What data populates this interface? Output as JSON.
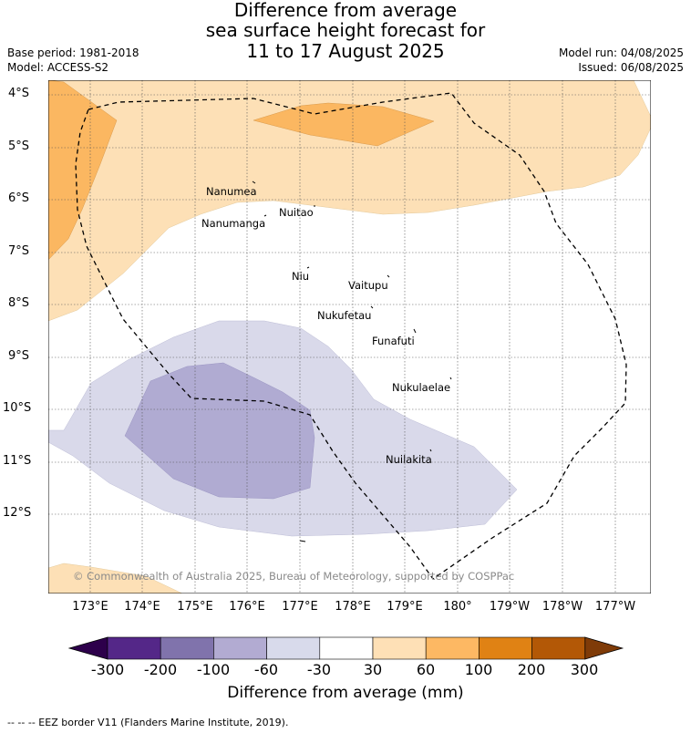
{
  "header": {
    "title_line1": "Difference from average",
    "title_line2": "sea surface height forecast for",
    "title_line3": "11 to 17 August 2025",
    "base_period": "Base period: 1981-2018",
    "model": "Model: ACCESS-S2",
    "model_run": "Model run: 04/08/2025",
    "issued": "Issued: 06/08/2025"
  },
  "map": {
    "lat_labels": [
      "4°S",
      "5°S",
      "6°S",
      "7°S",
      "8°S",
      "9°S",
      "10°S",
      "11°S",
      "12°S"
    ],
    "lon_labels": [
      "173°E",
      "174°E",
      "175°E",
      "176°E",
      "177°E",
      "178°E",
      "179°E",
      "180°",
      "179°W",
      "178°W",
      "177°W"
    ],
    "islands": [
      {
        "name": "Nanumea"
      },
      {
        "name": "Nuitao"
      },
      {
        "name": "Nanumanga"
      },
      {
        "name": "Niu"
      },
      {
        "name": "Vaitupu"
      },
      {
        "name": "Nukufetau"
      },
      {
        "name": "Funafuti"
      },
      {
        "name": "Nukulaelae"
      },
      {
        "name": "Nuilakita"
      }
    ],
    "copyright": "© Commonwealth of Australia 2025, Bureau of Meteorology, supported by COSPPac",
    "colors": {
      "pos_30_60": "#fde0b6",
      "pos_60_100": "#fbb761",
      "neg_30_60": "#d9d9ea",
      "neg_60_100": "#b0abd2",
      "eez": "#000000"
    }
  },
  "colorbar": {
    "ticks": [
      "-300",
      "-200",
      "-100",
      "-60",
      "-30",
      "30",
      "60",
      "100",
      "200",
      "300"
    ],
    "colors": [
      "#2d004b",
      "#542788",
      "#8073ac",
      "#b2abd2",
      "#d8daeb",
      "#ffffff",
      "#fee0b6",
      "#fdb863",
      "#e08214",
      "#b35806",
      "#7f3b08"
    ],
    "title": "Difference from average (mm)"
  },
  "footer": {
    "legend": "-- -- -- EEZ border V11 (Flanders Marine Institute, 2019)."
  }
}
